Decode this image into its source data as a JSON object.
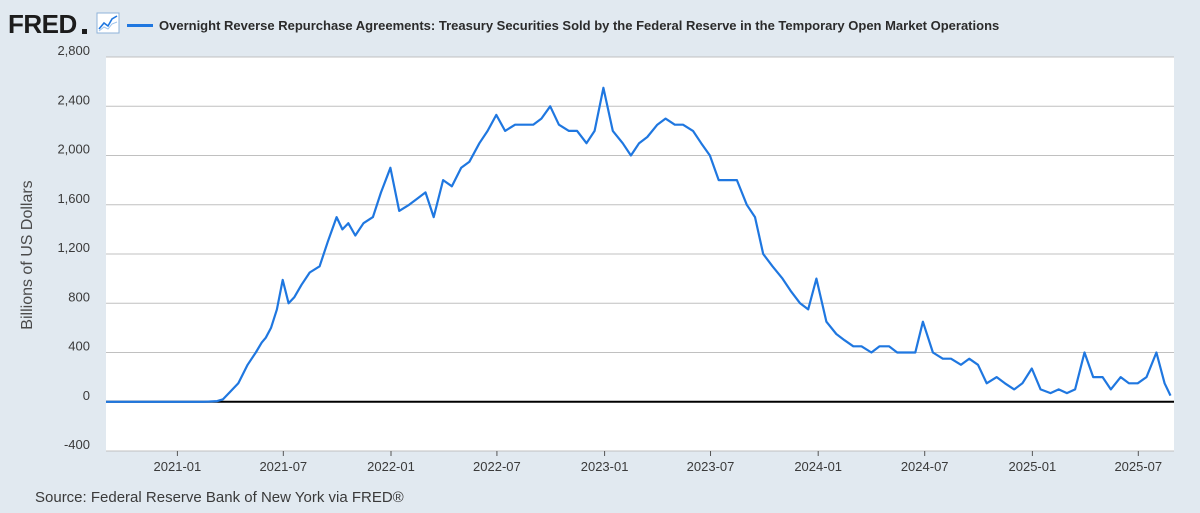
{
  "header": {
    "logo_text": "FRED",
    "logo_icon": "line-chart-icon",
    "legend_label": "Overnight Reverse Repurchase Agreements: Treasury Securities Sold by the Federal Reserve in the Temporary Open Market Operations"
  },
  "source": "Source: Federal Reserve Bank of New York via FRED®",
  "colors": {
    "series": "#1f77e0",
    "background": "#e1e9f0",
    "plot_bg": "#ffffff",
    "grid": "#c0c0c0",
    "zero_line": "#000000"
  },
  "chart_data": {
    "type": "line",
    "title": "Overnight Reverse Repurchase Agreements: Treasury Securities Sold by the Federal Reserve in the Temporary Open Market Operations",
    "xlabel": "",
    "ylabel": "Billions of US Dollars",
    "xlim": [
      "2020-09-01",
      "2025-08-31"
    ],
    "ylim": [
      -400,
      2800
    ],
    "yticks": [
      -400,
      0,
      400,
      800,
      1200,
      1600,
      2000,
      2400,
      2800
    ],
    "ytick_labels": [
      "-400",
      "0",
      "400",
      "800",
      "1,200",
      "1,600",
      "2,000",
      "2,400",
      "2,800"
    ],
    "xticks": [
      "2021-01-01",
      "2021-07-01",
      "2022-01-01",
      "2022-07-01",
      "2023-01-01",
      "2023-07-01",
      "2024-01-01",
      "2024-07-01",
      "2025-01-01",
      "2025-07-01"
    ],
    "xtick_labels": [
      "2021-01",
      "2021-07",
      "2022-01",
      "2022-07",
      "2023-01",
      "2023-07",
      "2024-01",
      "2024-07",
      "2025-01",
      "2025-07"
    ],
    "grid": true,
    "series": [
      {
        "name": "Overnight Reverse Repurchase Agreements",
        "x": [
          "2020-09-01",
          "2020-10-15",
          "2020-12-01",
          "2021-01-15",
          "2021-02-15",
          "2021-03-10",
          "2021-03-20",
          "2021-04-01",
          "2021-04-15",
          "2021-05-01",
          "2021-05-15",
          "2021-05-25",
          "2021-06-01",
          "2021-06-10",
          "2021-06-20",
          "2021-06-30",
          "2021-07-10",
          "2021-07-20",
          "2021-08-01",
          "2021-08-15",
          "2021-09-01",
          "2021-09-15",
          "2021-09-30",
          "2021-10-10",
          "2021-10-20",
          "2021-11-01",
          "2021-11-15",
          "2021-12-01",
          "2021-12-15",
          "2021-12-31",
          "2022-01-15",
          "2022-02-01",
          "2022-02-15",
          "2022-03-01",
          "2022-03-15",
          "2022-03-31",
          "2022-04-15",
          "2022-05-01",
          "2022-05-15",
          "2022-06-01",
          "2022-06-15",
          "2022-06-30",
          "2022-07-15",
          "2022-08-01",
          "2022-08-15",
          "2022-09-01",
          "2022-09-15",
          "2022-09-30",
          "2022-10-15",
          "2022-11-01",
          "2022-11-15",
          "2022-12-01",
          "2022-12-15",
          "2022-12-30",
          "2023-01-15",
          "2023-02-01",
          "2023-02-15",
          "2023-03-01",
          "2023-03-15",
          "2023-04-01",
          "2023-04-15",
          "2023-05-01",
          "2023-05-15",
          "2023-06-01",
          "2023-06-15",
          "2023-06-30",
          "2023-07-15",
          "2023-08-01",
          "2023-08-15",
          "2023-09-01",
          "2023-09-15",
          "2023-09-29",
          "2023-10-15",
          "2023-11-01",
          "2023-11-15",
          "2023-12-01",
          "2023-12-15",
          "2023-12-29",
          "2024-01-15",
          "2024-02-01",
          "2024-02-15",
          "2024-03-01",
          "2024-03-15",
          "2024-04-01",
          "2024-04-15",
          "2024-05-01",
          "2024-05-15",
          "2024-06-01",
          "2024-06-15",
          "2024-06-28",
          "2024-07-15",
          "2024-08-01",
          "2024-08-15",
          "2024-09-01",
          "2024-09-15",
          "2024-09-30",
          "2024-10-15",
          "2024-11-01",
          "2024-11-15",
          "2024-12-01",
          "2024-12-15",
          "2024-12-31",
          "2025-01-15",
          "2025-02-01",
          "2025-02-15",
          "2025-03-01",
          "2025-03-15",
          "2025-03-31",
          "2025-04-15",
          "2025-05-01",
          "2025-05-15",
          "2025-06-01",
          "2025-06-15",
          "2025-06-30",
          "2025-07-15",
          "2025-08-01",
          "2025-08-15",
          "2025-08-25"
        ],
        "values": [
          0,
          0,
          0,
          0,
          0,
          5,
          20,
          80,
          150,
          300,
          400,
          480,
          520,
          600,
          750,
          990,
          800,
          850,
          950,
          1050,
          1100,
          1300,
          1500,
          1400,
          1450,
          1350,
          1450,
          1500,
          1700,
          1900,
          1550,
          1600,
          1650,
          1700,
          1500,
          1800,
          1750,
          1900,
          1950,
          2100,
          2200,
          2330,
          2200,
          2250,
          2250,
          2250,
          2300,
          2400,
          2250,
          2200,
          2200,
          2100,
          2200,
          2550,
          2200,
          2100,
          2000,
          2100,
          2150,
          2250,
          2300,
          2250,
          2250,
          2200,
          2100,
          2000,
          1800,
          1800,
          1800,
          1600,
          1500,
          1200,
          1100,
          1000,
          900,
          800,
          750,
          1000,
          650,
          550,
          500,
          450,
          450,
          400,
          450,
          450,
          400,
          400,
          400,
          650,
          400,
          350,
          350,
          300,
          350,
          300,
          150,
          200,
          150,
          100,
          150,
          270,
          100,
          70,
          100,
          70,
          100,
          400,
          200,
          200,
          100,
          200,
          150,
          150,
          200,
          400,
          150,
          50
        ]
      }
    ],
    "annotations": []
  }
}
